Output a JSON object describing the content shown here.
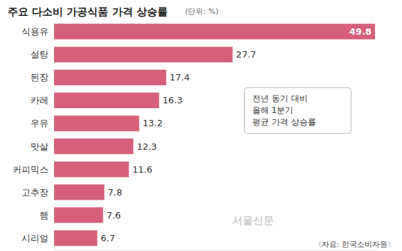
{
  "chart_data": {
    "type": "bar",
    "orientation": "horizontal",
    "title": "주요 다소비 가공식품 가격 상승률",
    "subtitle": "(단위: %)",
    "categories": [
      "식용유",
      "설탕",
      "된장",
      "카레",
      "우유",
      "맛살",
      "커피믹스",
      "고추장",
      "햄",
      "시리얼"
    ],
    "values": [
      49.8,
      27.7,
      17.4,
      16.3,
      13.2,
      12.3,
      11.6,
      7.8,
      7.6,
      6.7
    ],
    "color": "#d6607a",
    "xlim": [
      0,
      50
    ],
    "data_labels": true,
    "tick_labels": "y",
    "grid": false,
    "annotations": [
      "전년 동기 대비\n올해 1분기\n평균 가격 상승률"
    ],
    "source": "〈자료: 한국소비자원〉",
    "watermark": "서울신문"
  }
}
